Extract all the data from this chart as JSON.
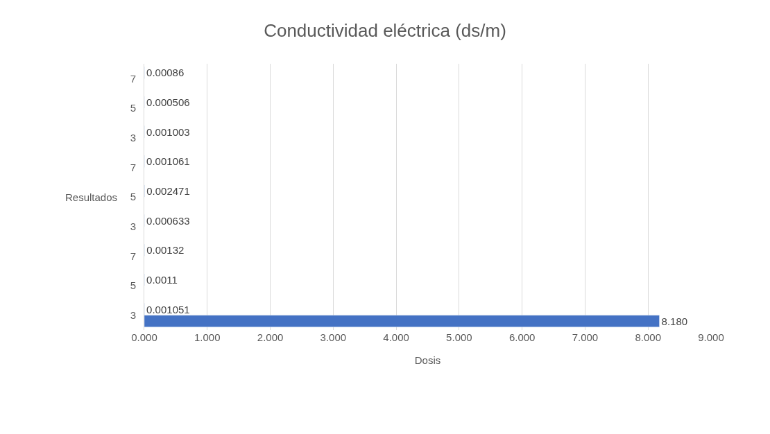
{
  "chart_data": {
    "type": "bar",
    "orientation": "horizontal",
    "title": "Conductividad eléctrica (ds/m)",
    "xlabel": "Dosis",
    "ylabel": "Resultados",
    "categories": [
      "7",
      "5",
      "3",
      "7",
      "5",
      "3",
      "7",
      "5",
      "3"
    ],
    "series": [
      {
        "color": "#4472c4",
        "values": [
          0.00086,
          0.000506,
          0.001003,
          0.001061,
          0.002471,
          0.000633,
          0.00132,
          0.0011,
          0.001051
        ],
        "value_labels": [
          "0.00086",
          "0.000506",
          "0.001003",
          "0.001061",
          "0.002471",
          "0.000633",
          "0.00132",
          "0.0011",
          "0.001051"
        ]
      },
      {
        "color": "#4472c4",
        "values": [
          null,
          null,
          null,
          null,
          null,
          null,
          null,
          null,
          8.18
        ],
        "value_labels": [
          null,
          null,
          null,
          null,
          null,
          null,
          null,
          null,
          "8.180"
        ]
      }
    ],
    "xlim": [
      0,
      9
    ],
    "xticks": [
      {
        "value": 0,
        "label": "0.000"
      },
      {
        "value": 1,
        "label": "1.000"
      },
      {
        "value": 2,
        "label": "2.000"
      },
      {
        "value": 3,
        "label": "3.000"
      },
      {
        "value": 4,
        "label": "4.000"
      },
      {
        "value": 5,
        "label": "5.000"
      },
      {
        "value": 6,
        "label": "6.000"
      },
      {
        "value": 7,
        "label": "7.000"
      },
      {
        "value": 8,
        "label": "8.000"
      },
      {
        "value": 9,
        "label": "9.000"
      }
    ],
    "grid": "x"
  }
}
